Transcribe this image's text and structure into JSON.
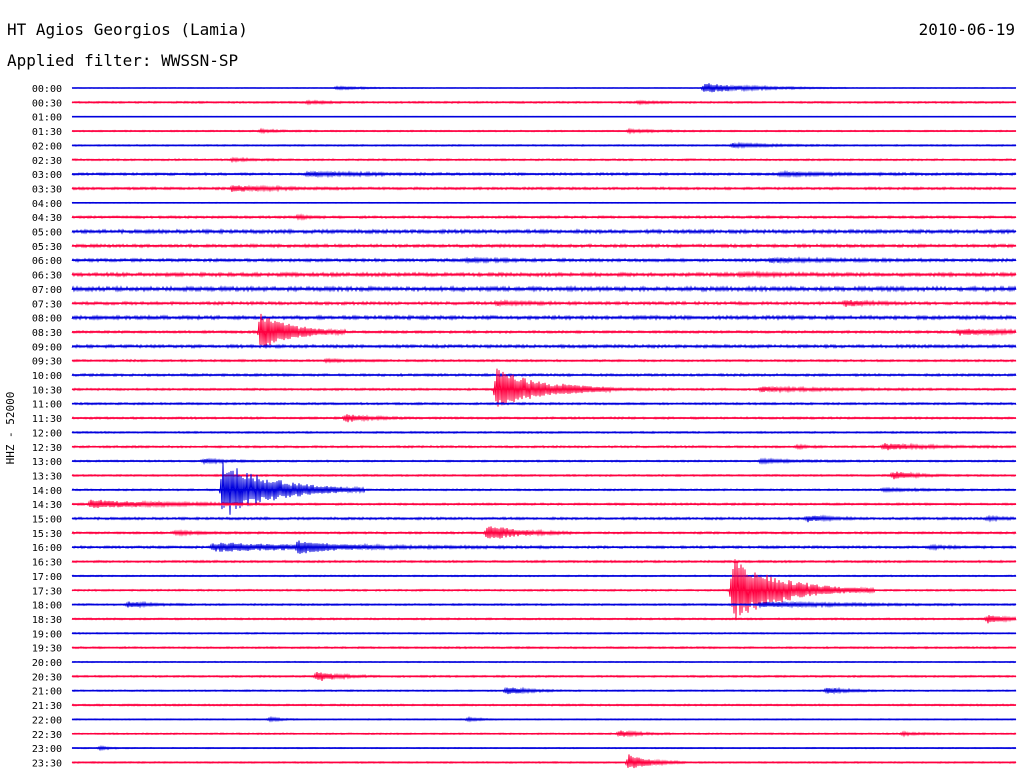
{
  "header": {
    "station": "HT Agios Georgios (Lamia)",
    "date": "2010-06-19",
    "filter": "Applied filter: WWSSN-SP",
    "channel": "HHZ - 52000"
  },
  "colors": {
    "blue": "#0000dd",
    "red": "#ff0040",
    "background": "#ffffff",
    "text": "#000000"
  },
  "traces": [
    {
      "time": "00:00",
      "color": "blue",
      "noise": 0.25,
      "events": [
        {
          "x": 0.28,
          "a": 1.5,
          "d": 0.03
        },
        {
          "x": 0.67,
          "a": 5,
          "d": 0.05
        }
      ]
    },
    {
      "time": "00:30",
      "color": "red",
      "noise": 0.6,
      "events": [
        {
          "x": 0.25,
          "a": 1.2,
          "d": 0.02
        },
        {
          "x": 0.6,
          "a": 1,
          "d": 0.02
        }
      ]
    },
    {
      "time": "01:00",
      "color": "blue",
      "noise": 0.2,
      "events": []
    },
    {
      "time": "01:30",
      "color": "red",
      "noise": 0.5,
      "events": [
        {
          "x": 0.2,
          "a": 1.2,
          "d": 0.02
        },
        {
          "x": 0.59,
          "a": 1.5,
          "d": 0.03
        }
      ]
    },
    {
      "time": "02:00",
      "color": "blue",
      "noise": 0.5,
      "events": [
        {
          "x": 0.7,
          "a": 2,
          "d": 0.04
        }
      ]
    },
    {
      "time": "02:30",
      "color": "red",
      "noise": 0.6,
      "events": [
        {
          "x": 0.17,
          "a": 1.5,
          "d": 0.02
        }
      ]
    },
    {
      "time": "03:00",
      "color": "blue",
      "noise": 0.8,
      "events": [
        {
          "x": 0.25,
          "a": 2,
          "d": 0.06
        },
        {
          "x": 0.75,
          "a": 1.5,
          "d": 0.06
        }
      ]
    },
    {
      "time": "03:30",
      "color": "red",
      "noise": 0.8,
      "events": [
        {
          "x": 0.17,
          "a": 3,
          "d": 0.04
        }
      ]
    },
    {
      "time": "04:00",
      "color": "blue",
      "noise": 0.3,
      "events": []
    },
    {
      "time": "04:30",
      "color": "red",
      "noise": 0.8,
      "events": [
        {
          "x": 0.24,
          "a": 2,
          "d": 0.01
        }
      ]
    },
    {
      "time": "05:00",
      "color": "blue",
      "noise": 1.2,
      "events": []
    },
    {
      "time": "05:30",
      "color": "red",
      "noise": 1.0,
      "events": []
    },
    {
      "time": "06:00",
      "color": "blue",
      "noise": 1.0,
      "events": [
        {
          "x": 0.42,
          "a": 1.5,
          "d": 0.03
        },
        {
          "x": 0.74,
          "a": 1.5,
          "d": 0.06
        }
      ]
    },
    {
      "time": "06:30",
      "color": "red",
      "noise": 1.2,
      "events": [
        {
          "x": 0.71,
          "a": 1.2,
          "d": 0.04
        }
      ]
    },
    {
      "time": "07:00",
      "color": "blue",
      "noise": 1.4,
      "events": []
    },
    {
      "time": "07:30",
      "color": "red",
      "noise": 1.0,
      "events": [
        {
          "x": 0.45,
          "a": 1.5,
          "d": 0.03
        },
        {
          "x": 0.82,
          "a": 2.5,
          "d": 0.02
        }
      ]
    },
    {
      "time": "08:00",
      "color": "blue",
      "noise": 1.2,
      "events": []
    },
    {
      "time": "08:30",
      "color": "red",
      "noise": 0.8,
      "events": [
        {
          "x": 0.2,
          "a": 20,
          "d": 0.03
        },
        {
          "x": 0.94,
          "a": 3,
          "d": 0.05
        }
      ]
    },
    {
      "time": "09:00",
      "color": "blue",
      "noise": 1.0,
      "events": []
    },
    {
      "time": "09:30",
      "color": "red",
      "noise": 0.7,
      "events": [
        {
          "x": 0.27,
          "a": 1.2,
          "d": 0.02
        }
      ]
    },
    {
      "time": "10:00",
      "color": "blue",
      "noise": 0.8,
      "events": []
    },
    {
      "time": "10:30",
      "color": "red",
      "noise": 0.7,
      "events": [
        {
          "x": 0.45,
          "a": 22,
          "d": 0.04
        },
        {
          "x": 0.52,
          "a": 2,
          "d": 0.04
        },
        {
          "x": 0.73,
          "a": 2,
          "d": 0.06
        }
      ]
    },
    {
      "time": "11:00",
      "color": "blue",
      "noise": 0.7,
      "events": []
    },
    {
      "time": "11:30",
      "color": "red",
      "noise": 0.7,
      "events": [
        {
          "x": 0.29,
          "a": 4,
          "d": 0.02
        }
      ]
    },
    {
      "time": "12:00",
      "color": "blue",
      "noise": 0.6,
      "events": []
    },
    {
      "time": "12:30",
      "color": "red",
      "noise": 0.7,
      "events": [
        {
          "x": 0.77,
          "a": 1.5,
          "d": 0.01
        },
        {
          "x": 0.86,
          "a": 3,
          "d": 0.04
        }
      ]
    },
    {
      "time": "13:00",
      "color": "blue",
      "noise": 0.6,
      "events": [
        {
          "x": 0.14,
          "a": 2,
          "d": 0.02
        },
        {
          "x": 0.73,
          "a": 1.5,
          "d": 0.04
        }
      ]
    },
    {
      "time": "13:30",
      "color": "red",
      "noise": 0.6,
      "events": [
        {
          "x": 0.87,
          "a": 4,
          "d": 0.02
        }
      ]
    },
    {
      "time": "14:00",
      "color": "blue",
      "noise": 0.6,
      "events": [
        {
          "x": 0.16,
          "a": 30,
          "d": 0.05
        },
        {
          "x": 0.86,
          "a": 1.2,
          "d": 0.04
        }
      ]
    },
    {
      "time": "14:30",
      "color": "red",
      "noise": 0.7,
      "events": [
        {
          "x": 0.02,
          "a": 4,
          "d": 0.07
        }
      ]
    },
    {
      "time": "15:00",
      "color": "blue",
      "noise": 0.8,
      "events": [
        {
          "x": 0.78,
          "a": 3,
          "d": 0.02
        },
        {
          "x": 0.97,
          "a": 1.5,
          "d": 0.02
        }
      ]
    },
    {
      "time": "15:30",
      "color": "red",
      "noise": 0.7,
      "events": [
        {
          "x": 0.11,
          "a": 1.5,
          "d": 0.03
        },
        {
          "x": 0.44,
          "a": 8,
          "d": 0.03
        }
      ]
    },
    {
      "time": "16:00",
      "color": "blue",
      "noise": 0.8,
      "events": [
        {
          "x": 0.15,
          "a": 4,
          "d": 0.12
        },
        {
          "x": 0.24,
          "a": 5,
          "d": 0.03
        },
        {
          "x": 0.91,
          "a": 1.5,
          "d": 0.02
        }
      ]
    },
    {
      "time": "16:30",
      "color": "red",
      "noise": 0.7,
      "events": []
    },
    {
      "time": "17:00",
      "color": "blue",
      "noise": 0.5,
      "events": []
    },
    {
      "time": "17:30",
      "color": "red",
      "noise": 0.6,
      "events": [
        {
          "x": 0.7,
          "a": 32,
          "d": 0.05
        }
      ]
    },
    {
      "time": "18:00",
      "color": "blue",
      "noise": 0.6,
      "events": [
        {
          "x": 0.06,
          "a": 3,
          "d": 0.02
        },
        {
          "x": 0.73,
          "a": 2.5,
          "d": 0.08
        }
      ]
    },
    {
      "time": "18:30",
      "color": "red",
      "noise": 0.6,
      "events": [
        {
          "x": 0.97,
          "a": 4,
          "d": 0.02
        }
      ]
    },
    {
      "time": "19:00",
      "color": "blue",
      "noise": 0.5,
      "events": []
    },
    {
      "time": "19:30",
      "color": "red",
      "noise": 0.6,
      "events": []
    },
    {
      "time": "20:00",
      "color": "blue",
      "noise": 0.4,
      "events": []
    },
    {
      "time": "20:30",
      "color": "red",
      "noise": 0.6,
      "events": [
        {
          "x": 0.26,
          "a": 5,
          "d": 0.02
        }
      ]
    },
    {
      "time": "21:00",
      "color": "blue",
      "noise": 0.5,
      "events": [
        {
          "x": 0.46,
          "a": 4,
          "d": 0.02
        },
        {
          "x": 0.8,
          "a": 3,
          "d": 0.02
        }
      ]
    },
    {
      "time": "21:30",
      "color": "red",
      "noise": 0.6,
      "events": []
    },
    {
      "time": "22:00",
      "color": "blue",
      "noise": 0.4,
      "events": [
        {
          "x": 0.21,
          "a": 2,
          "d": 0.01
        },
        {
          "x": 0.42,
          "a": 2,
          "d": 0.01
        }
      ]
    },
    {
      "time": "22:30",
      "color": "red",
      "noise": 0.5,
      "events": [
        {
          "x": 0.58,
          "a": 3,
          "d": 0.02
        },
        {
          "x": 0.88,
          "a": 1.5,
          "d": 0.02
        }
      ]
    },
    {
      "time": "23:00",
      "color": "blue",
      "noise": 0.4,
      "events": [
        {
          "x": 0.03,
          "a": 1.5,
          "d": 0.01
        }
      ]
    },
    {
      "time": "23:30",
      "color": "red",
      "noise": 0.5,
      "events": [
        {
          "x": 0.59,
          "a": 8,
          "d": 0.02
        }
      ]
    }
  ]
}
